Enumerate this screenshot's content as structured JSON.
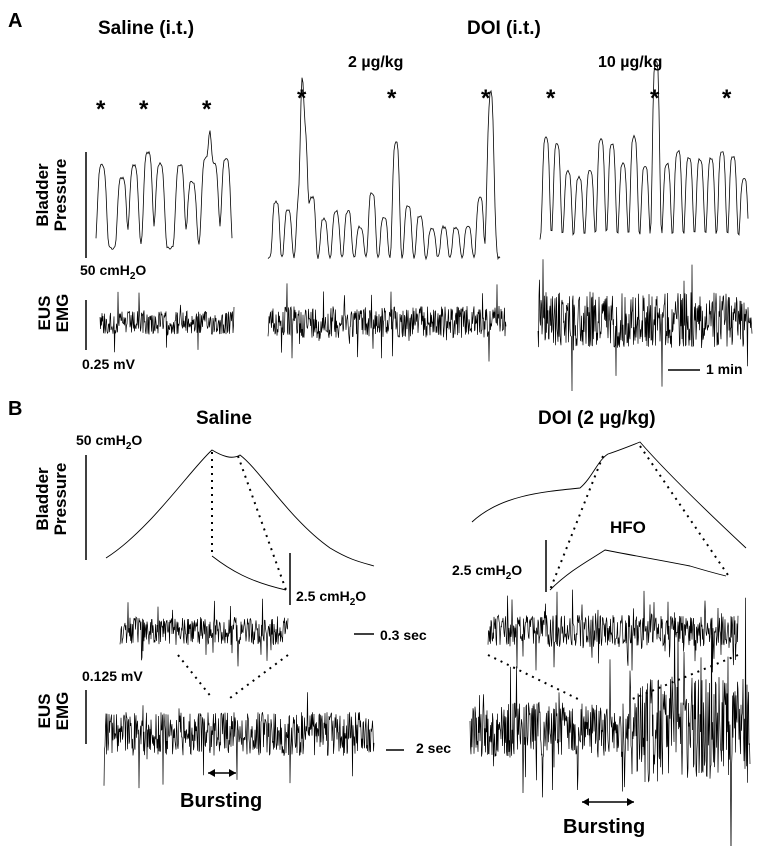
{
  "panels": {
    "a": "A",
    "b": "B"
  },
  "panelA": {
    "saline_title": "Saline (i.t.)",
    "doi_title": "DOI (i.t.)",
    "dose_low": "2 µg/kg",
    "dose_high": "10 µg/kg",
    "star": "*",
    "bladder_label_1": "Bladder",
    "bladder_label_2": "Pressure",
    "emg_label_1": "EUS",
    "emg_label_2": "EMG",
    "pressure_scale_prefix": "50 cmH",
    "pressure_scale_sub": "2",
    "pressure_scale_suffix": "O",
    "emg_scale": "0.25 mV",
    "time_scale": "1 min"
  },
  "panelB": {
    "saline_title": "Saline",
    "doi_title": "DOI (2 µg/kg)",
    "bladder_label_1": "Bladder",
    "bladder_label_2": "Pressure",
    "emg_label_1": "EUS",
    "emg_label_2": "EMG",
    "pressure_scale_prefix": "50 cmH",
    "pressure_scale_sub": "2",
    "pressure_scale_suffix": "O",
    "inset_scale_left_prefix": "2.5 cmH",
    "inset_scale_left_sub": "2",
    "inset_scale_left_suffix": "O",
    "inset_scale_right_prefix": "2.5 cmH",
    "inset_scale_right_sub": "2",
    "inset_scale_right_suffix": "O",
    "hfo": "HFO",
    "emg_scale": "0.125 mV",
    "short_time_scale": "0.3 sec",
    "long_time_scale": "2 sec",
    "bursting_left": "Bursting",
    "bursting_right": "Bursting"
  }
}
